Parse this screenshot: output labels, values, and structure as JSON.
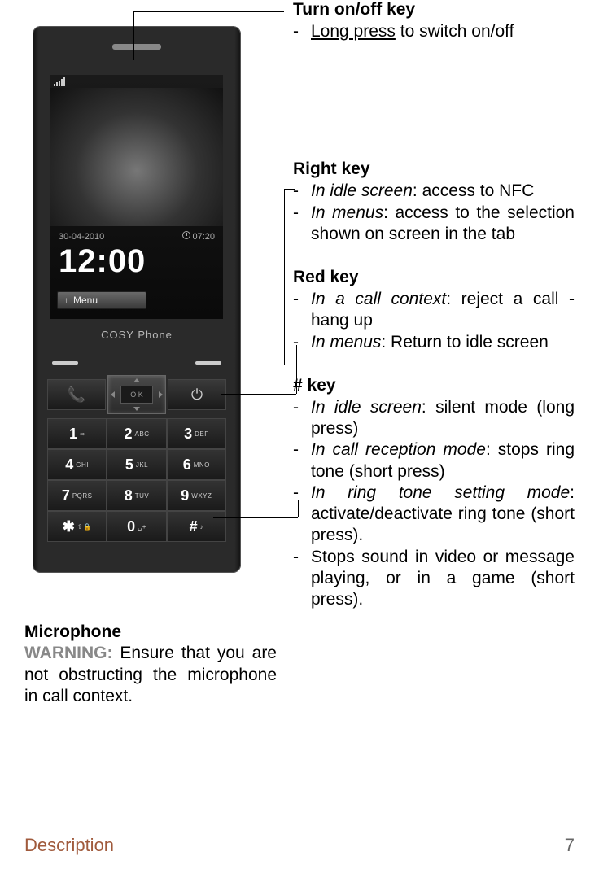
{
  "sections": {
    "power": {
      "title": "Turn on/off key",
      "items": [
        {
          "pre": "",
          "underline": "Long press",
          "post": " to switch on/off"
        }
      ]
    },
    "right": {
      "title": "Right key",
      "items": [
        {
          "em": "In idle screen",
          "rest": ": access to NFC"
        },
        {
          "em": "In menus",
          "rest": ": access to the selection shown on screen in the tab"
        }
      ]
    },
    "red": {
      "title": "Red key",
      "items": [
        {
          "em": "In a call context",
          "rest": ": reject a call - hang up"
        },
        {
          "em": "In menus",
          "rest": ": Return to idle screen"
        }
      ]
    },
    "hash": {
      "title": "# key",
      "items": [
        {
          "em": "In idle screen",
          "rest": ": silent mode (long press)"
        },
        {
          "em": "In call reception mode",
          "rest": ": stops ring tone (short press)"
        },
        {
          "em": "In ring tone setting mode",
          "rest": ": activate/deactivate ring tone (short press)."
        },
        {
          "em": "",
          "rest": "Stops sound in video or message playing, or in a game (short press)."
        }
      ]
    },
    "mic": {
      "title": "Microphone",
      "warn": "WARNING:",
      "text": " Ensure that you are not obstructing the microphone in call context."
    }
  },
  "phone": {
    "date": "30-04-2010",
    "clock": "07:20",
    "bigtime": "12:00",
    "menu": "Menu",
    "brand": "COSY Phone",
    "ok": "O K",
    "keypad": [
      [
        "1",
        "∞"
      ],
      [
        "2",
        "ABC"
      ],
      [
        "3",
        "DEF"
      ],
      [
        "4",
        "GHI"
      ],
      [
        "5",
        "JKL"
      ],
      [
        "6",
        "MNO"
      ],
      [
        "7",
        "PQRS"
      ],
      [
        "8",
        "TUV"
      ],
      [
        "9",
        "WXYZ"
      ],
      [
        "✱",
        "⇧🔒"
      ],
      [
        "0",
        "␣+"
      ],
      [
        "#",
        "♪"
      ]
    ]
  },
  "footer": {
    "desc": "Description",
    "page": "7"
  }
}
